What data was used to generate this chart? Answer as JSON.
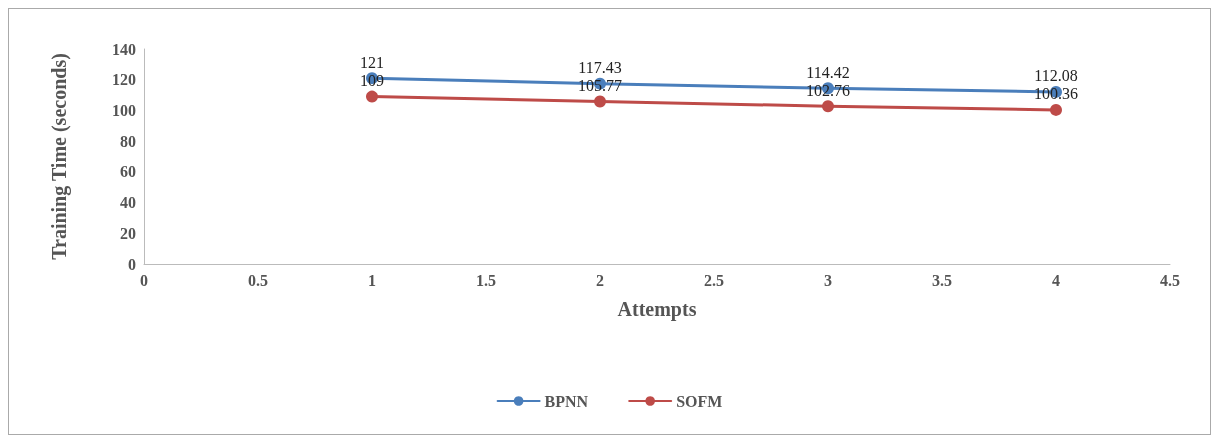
{
  "chart_data": {
    "type": "line",
    "xlabel": "Attempts",
    "ylabel": "Training Time (seconds)",
    "x": [
      1,
      2,
      3,
      4
    ],
    "series": [
      {
        "name": "BPNN",
        "color": "#4a7ebb",
        "values": [
          121,
          117.43,
          114.42,
          112.08
        ]
      },
      {
        "name": "SOFM",
        "color": "#be4b48",
        "values": [
          109,
          105.77,
          102.76,
          100.36
        ]
      }
    ],
    "xlim": [
      0,
      4.5
    ],
    "xticks": [
      0,
      0.5,
      1,
      1.5,
      2,
      2.5,
      3,
      3.5,
      4,
      4.5
    ],
    "ylim": [
      0,
      140
    ],
    "yticks": [
      0,
      20,
      40,
      60,
      80,
      100,
      120,
      140
    ],
    "data_labels": true,
    "grid": false,
    "legend": "bottom",
    "marker": "circle",
    "line_style": "solid"
  }
}
